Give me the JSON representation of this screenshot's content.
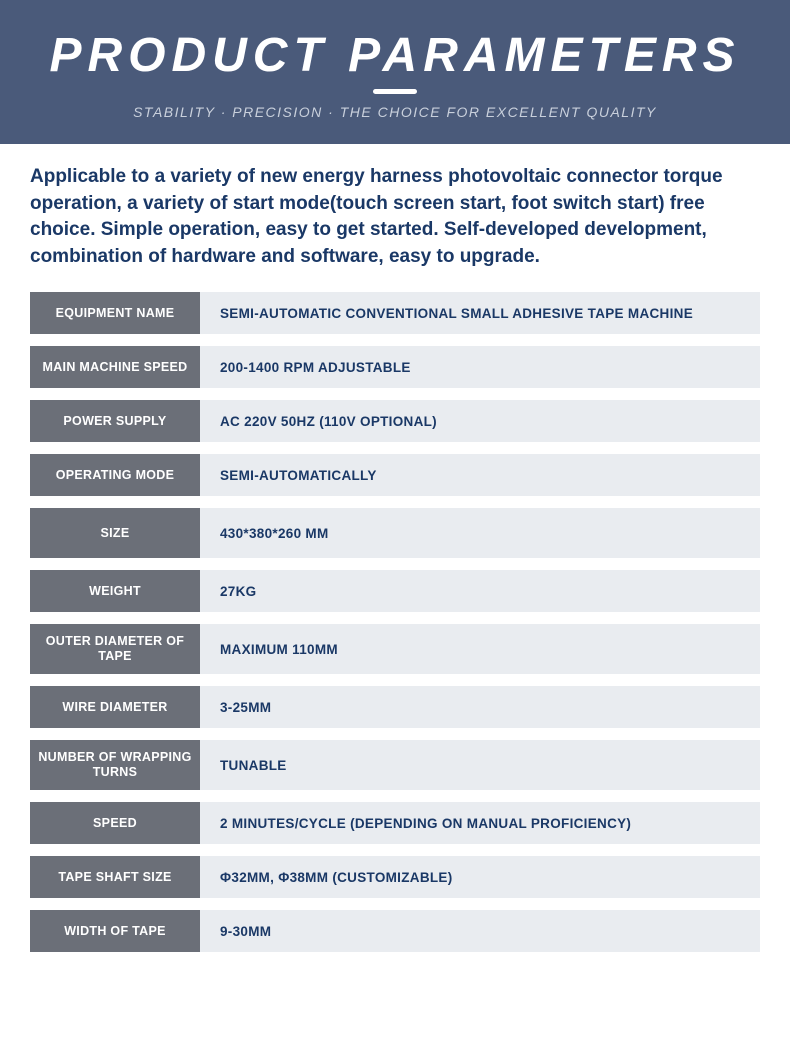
{
  "header": {
    "title": "PRODUCT PARAMETERS",
    "subtitle": "STABILITY · PRECISION · THE CHOICE FOR EXCELLENT QUALITY",
    "bg_color": "#4a5a7a",
    "title_color": "#ffffff",
    "subtitle_color": "#c9d0dc",
    "underline_color": "#ffffff"
  },
  "description": "Applicable to a variety of new energy harness photovoltaic connector torque operation, a variety of start mode(touch screen start, foot switch start) free choice. Simple operation, easy to get started. Self-developed development, combination of hardware and software, easy to upgrade.",
  "description_color": "#1a3866",
  "table": {
    "label_bg": "#6b6f78",
    "label_color": "#ffffff",
    "value_bg": "#e9ecf0",
    "value_color": "#1a3866",
    "rows": [
      {
        "label": "EQUIPMENT NAME",
        "value": "SEMI-AUTOMATIC CONVENTIONAL SMALL ADHESIVE TAPE MACHINE",
        "tall": false
      },
      {
        "label": "MAIN MACHINE SPEED",
        "value": "200-1400 RPM ADJUSTABLE",
        "tall": false
      },
      {
        "label": "POWER SUPPLY",
        "value": "AC 220V 50HZ (110V OPTIONAL)",
        "tall": false
      },
      {
        "label": "OPERATING MODE",
        "value": "SEMI-AUTOMATICALLY",
        "tall": false
      },
      {
        "label": "SIZE",
        "value": "430*380*260 MM",
        "tall": true
      },
      {
        "label": "WEIGHT",
        "value": "27KG",
        "tall": false
      },
      {
        "label": "OUTER DIAMETER OF TAPE",
        "value": "MAXIMUM 110MM",
        "tall": true
      },
      {
        "label": "WIRE DIAMETER",
        "value": "3-25MM",
        "tall": false
      },
      {
        "label": "NUMBER OF WRAPPING TURNS",
        "value": "TUNABLE",
        "tall": true
      },
      {
        "label": "SPEED",
        "value": "2 MINUTES/CYCLE (DEPENDING ON MANUAL PROFICIENCY)",
        "tall": false
      },
      {
        "label": "TAPE SHAFT SIZE",
        "value": "Φ32MM, Φ38MM (CUSTOMIZABLE)",
        "tall": false
      },
      {
        "label": "WIDTH OF TAPE",
        "value": "9-30MM",
        "tall": false
      }
    ]
  }
}
